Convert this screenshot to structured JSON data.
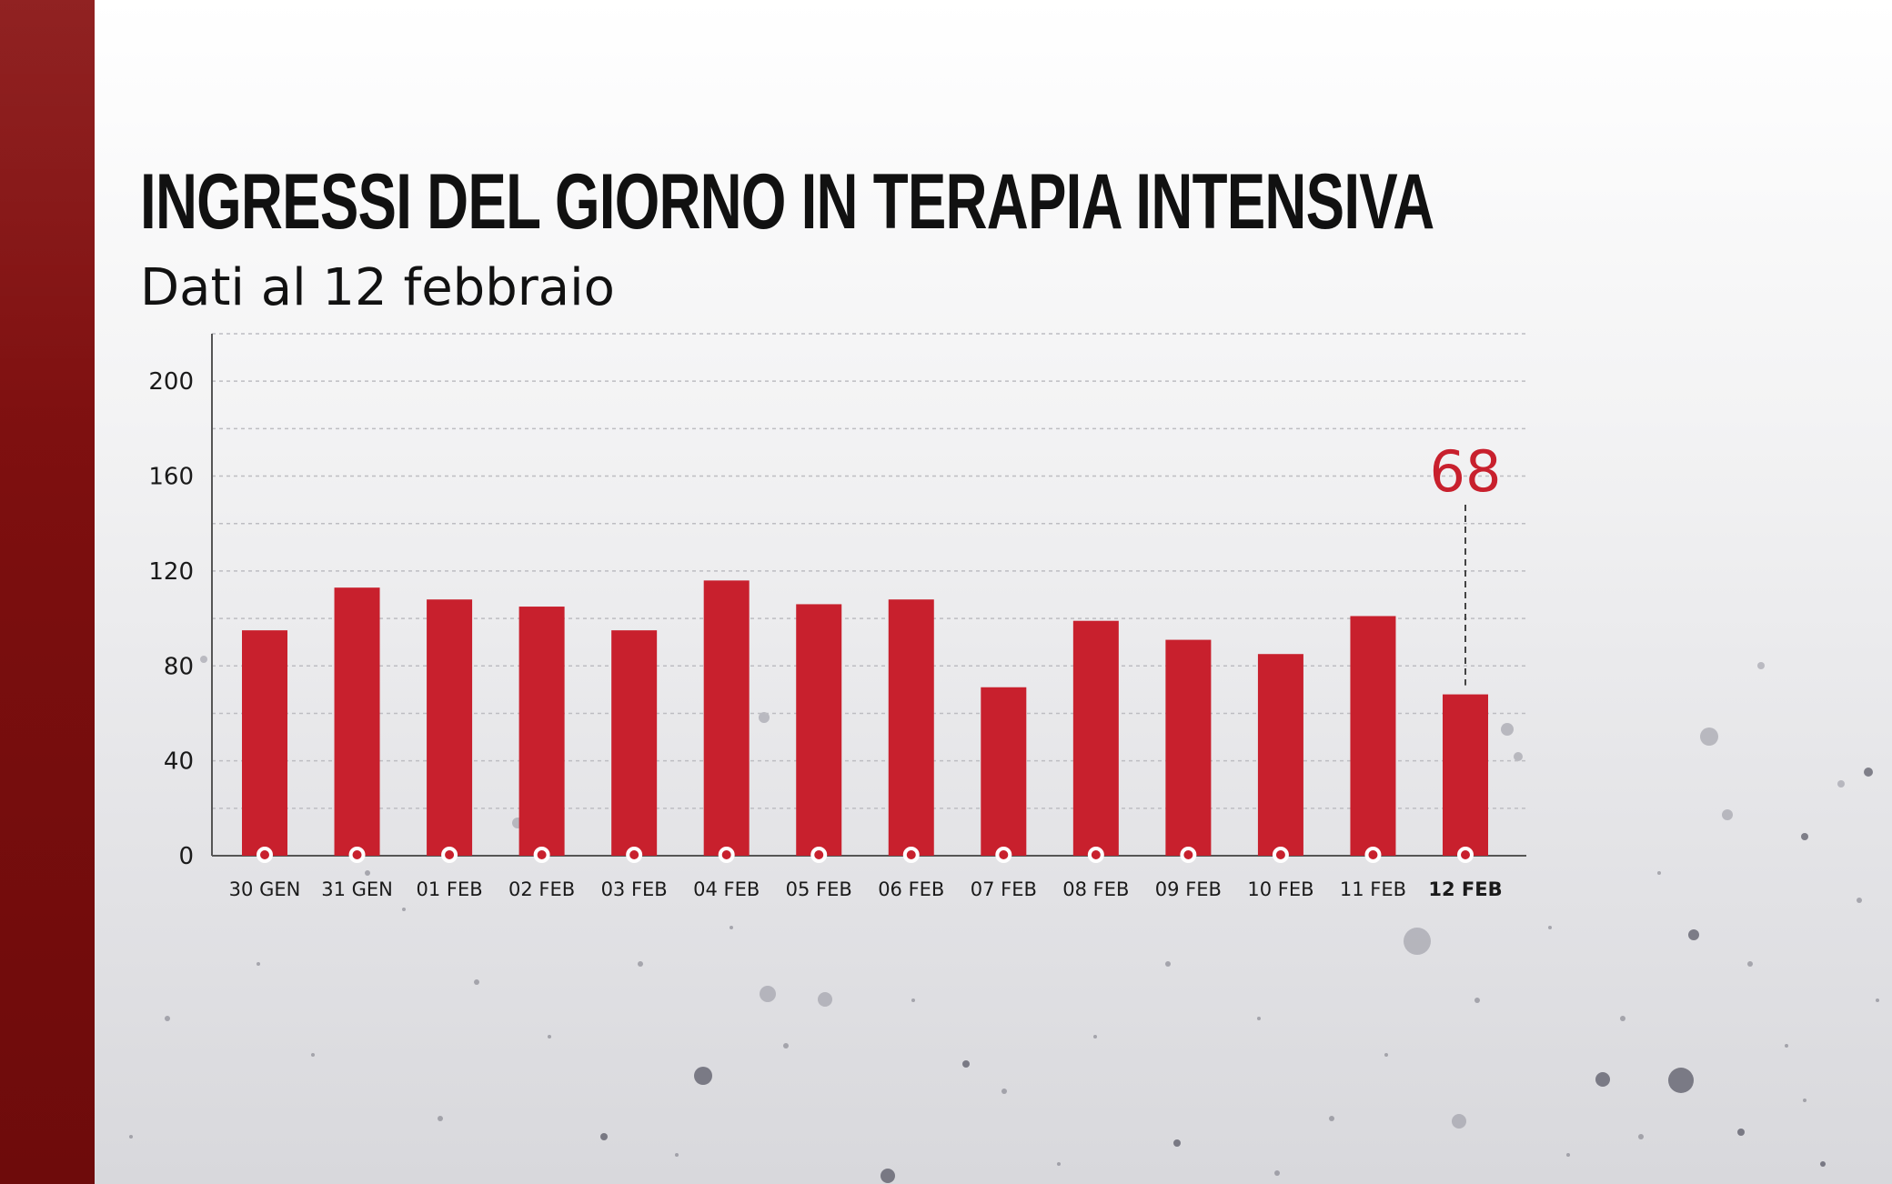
{
  "title": "INGRESSI DEL GIORNO IN TERAPIA INTENSIVA",
  "subtitle": "Dati al 12 febbraio",
  "colors": {
    "bar": "#c8202d",
    "side_bar": "#7a0e0e",
    "axis": "#555555",
    "grid": "#bdbdc2",
    "text": "#111111"
  },
  "chart_data": {
    "type": "bar",
    "categories": [
      "30 GEN",
      "31 GEN",
      "01 FEB",
      "02 FEB",
      "03 FEB",
      "04 FEB",
      "05 FEB",
      "06 FEB",
      "07 FEB",
      "08 FEB",
      "09 FEB",
      "10 FEB",
      "11 FEB",
      "12 FEB"
    ],
    "values": [
      95,
      113,
      108,
      105,
      95,
      116,
      106,
      108,
      71,
      99,
      91,
      85,
      101,
      68
    ],
    "ylim": [
      0,
      220
    ],
    "yticks": [
      0,
      40,
      80,
      120,
      160,
      200
    ],
    "grid": true,
    "highlight": {
      "category": "12 FEB",
      "label": "68"
    },
    "xlabel": "",
    "ylabel": ""
  }
}
